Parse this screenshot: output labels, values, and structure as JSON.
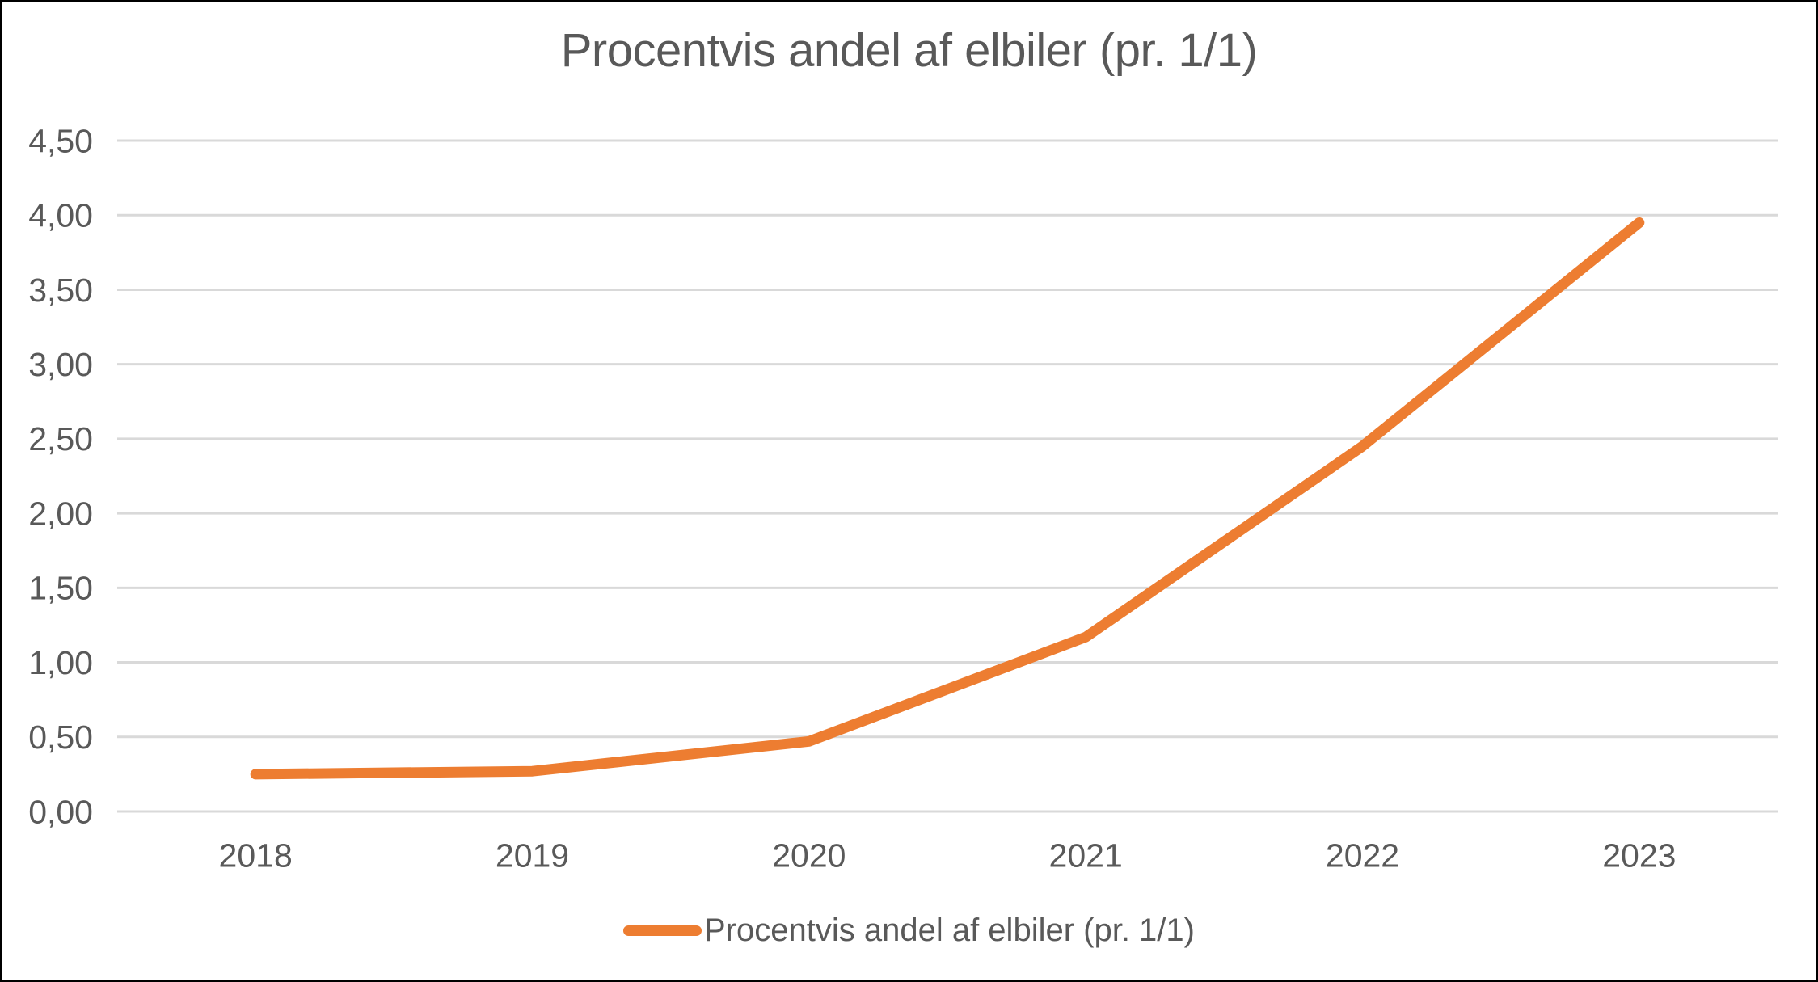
{
  "colors": {
    "accent": "#ED7D31",
    "gridline": "#D9D9D9",
    "text": "#595959",
    "border": "#000000",
    "background": "#FFFFFF"
  },
  "chart_data": {
    "type": "line",
    "title": "Procentvis andel af elbiler (pr. 1/1)",
    "xlabel": "",
    "ylabel": "",
    "categories": [
      "2018",
      "2019",
      "2020",
      "2021",
      "2022",
      "2023"
    ],
    "series": [
      {
        "name": "Procentvis andel af elbiler (pr. 1/1)",
        "values": [
          0.25,
          0.27,
          0.47,
          1.17,
          2.45,
          3.95
        ],
        "color": "#ED7D31"
      }
    ],
    "ylim": [
      0,
      4.5
    ],
    "ytick_step": 0.5,
    "ytick_labels": [
      "0,00",
      "0,50",
      "1,00",
      "1,50",
      "2,00",
      "2,50",
      "3,00",
      "3,50",
      "4,00",
      "4,50"
    ],
    "decimal_separator": ",",
    "grid": "horizontal",
    "legend_position": "bottom"
  }
}
